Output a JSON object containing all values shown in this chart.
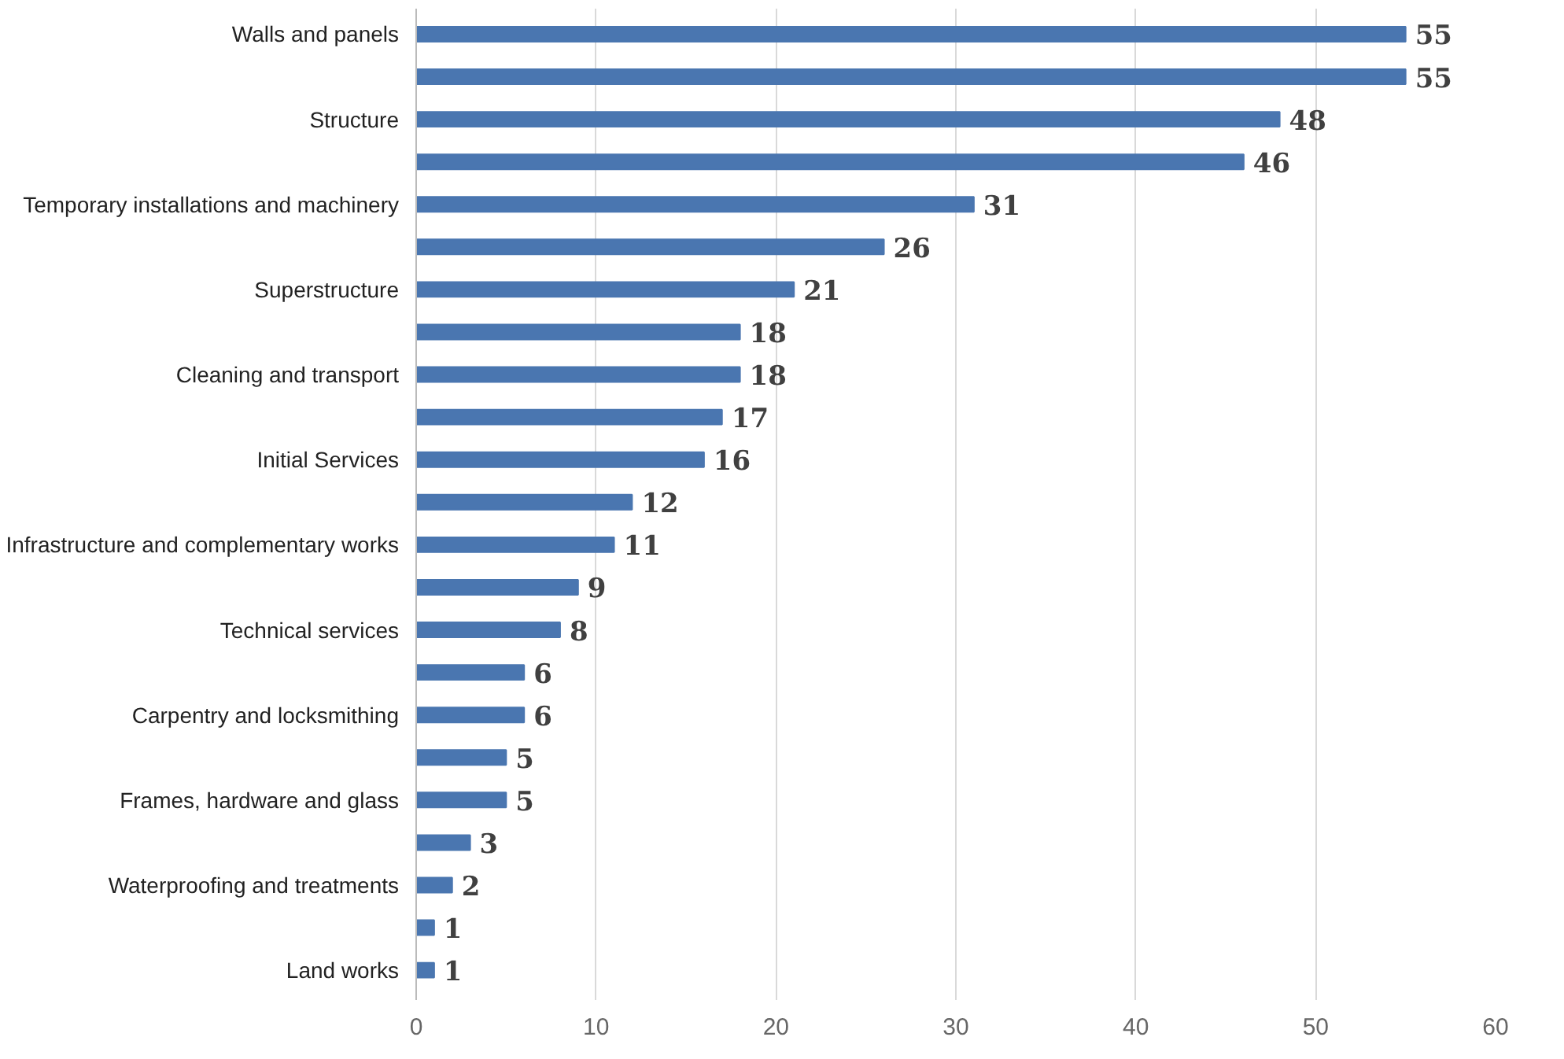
{
  "chart_data": {
    "type": "bar",
    "orientation": "horizontal",
    "categories": [
      "Walls and panels",
      null,
      "Structure",
      null,
      "Temporary installations and machinery",
      null,
      "Superstructure",
      null,
      "Cleaning and transport",
      null,
      "Initial Services",
      null,
      "Infrastructure and complementary works",
      null,
      "Technical services",
      null,
      "Carpentry and locksmithing",
      null,
      "Frames, hardware and glass",
      null,
      "Waterproofing and treatments",
      null,
      "Land works"
    ],
    "values": [
      55,
      55,
      48,
      46,
      31,
      26,
      21,
      18,
      18,
      17,
      16,
      12,
      11,
      9,
      8,
      6,
      6,
      5,
      5,
      3,
      2,
      1,
      1
    ],
    "color": "#4a76b0",
    "xlim": [
      0,
      60
    ],
    "xticks": [
      0,
      10,
      20,
      30,
      40,
      50,
      60
    ],
    "grid": "x",
    "data_labels": true
  }
}
